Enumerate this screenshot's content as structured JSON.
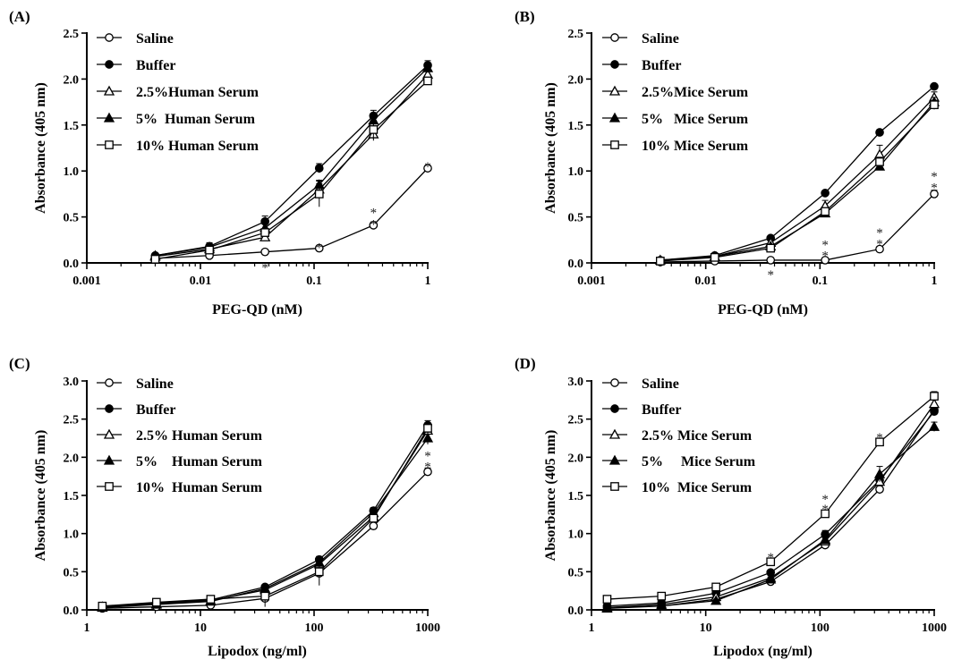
{
  "chart_data": [
    {
      "type": "line",
      "panel_label": "(A)",
      "xlabel": "PEG-QD (nM)",
      "ylabel": "Absorbance (405 nm)",
      "xscale": "log",
      "xlim": [
        0.001,
        1
      ],
      "ylim": [
        0,
        2.5
      ],
      "xticks": [
        "0.001",
        "0.01",
        "0.1",
        "1"
      ],
      "yticks": [
        "0.0",
        "0.5",
        "1.0",
        "1.5",
        "2.0",
        "2.5"
      ],
      "legend_position": "top-left",
      "x": [
        0.004,
        0.012,
        0.037,
        0.111,
        0.333,
        1
      ],
      "series": [
        {
          "name": "Saline",
          "marker": "open-circle",
          "values": [
            0.05,
            0.08,
            0.12,
            0.16,
            0.41,
            1.03
          ],
          "err": [
            0.02,
            0.02,
            0.02,
            0.02,
            0.03,
            0.02
          ]
        },
        {
          "name": "Buffer",
          "marker": "filled-circle",
          "values": [
            0.08,
            0.18,
            0.45,
            1.03,
            1.6,
            2.15
          ],
          "err": [
            0.02,
            0.04,
            0.06,
            0.05,
            0.06,
            0.05
          ]
        },
        {
          "name": "2.5%Human Serum",
          "marker": "open-triangle",
          "values": [
            0.07,
            0.15,
            0.28,
            0.8,
            1.4,
            2.05
          ],
          "err": [
            0.02,
            0.03,
            0.04,
            0.06,
            0.07,
            0.06
          ]
        },
        {
          "name": "5%  Human Serum",
          "marker": "filled-triangle",
          "values": [
            0.08,
            0.17,
            0.38,
            0.85,
            1.55,
            2.12
          ],
          "err": [
            0.02,
            0.03,
            0.05,
            0.05,
            0.05,
            0.05
          ]
        },
        {
          "name": "10% Human Serum",
          "marker": "open-square",
          "values": [
            0.04,
            0.14,
            0.33,
            0.75,
            1.45,
            1.98
          ],
          "err": [
            0.02,
            0.03,
            0.04,
            0.14,
            0.1,
            0.04
          ]
        }
      ],
      "annotations": [
        {
          "x": 0.037,
          "y": 0.0,
          "text": "*"
        },
        {
          "x": 0.111,
          "y": 0.22,
          "text": "*"
        },
        {
          "x": 0.333,
          "y": 0.47,
          "text": "*"
        },
        {
          "x": 0.333,
          "y": 0.6,
          "text": "*"
        },
        {
          "x": 1,
          "y": 1.1,
          "text": "*"
        }
      ]
    },
    {
      "type": "line",
      "panel_label": "(B)",
      "xlabel": "PEG-QD (nM)",
      "ylabel": "Absorbance (405 nm)",
      "xscale": "log",
      "xlim": [
        0.001,
        1
      ],
      "ylim": [
        0,
        2.5
      ],
      "xticks": [
        "0.001",
        "0.01",
        "0.1",
        "1"
      ],
      "yticks": [
        "0.0",
        "0.5",
        "1.0",
        "1.5",
        "2.0",
        "2.5"
      ],
      "legend_position": "top-left",
      "x": [
        0.004,
        0.012,
        0.037,
        0.111,
        0.333,
        1
      ],
      "series": [
        {
          "name": "Saline",
          "marker": "open-circle",
          "values": [
            0.01,
            0.02,
            0.03,
            0.03,
            0.15,
            0.75
          ],
          "err": [
            0.01,
            0.01,
            0.01,
            0.01,
            0.02,
            0.04
          ]
        },
        {
          "name": "Buffer",
          "marker": "filled-circle",
          "values": [
            0.03,
            0.08,
            0.27,
            0.76,
            1.42,
            1.92
          ],
          "err": [
            0.01,
            0.02,
            0.02,
            0.02,
            0.03,
            0.02
          ]
        },
        {
          "name": "2.5%Mice Serum",
          "marker": "open-triangle",
          "values": [
            0.03,
            0.07,
            0.22,
            0.62,
            1.18,
            1.8
          ],
          "err": [
            0.01,
            0.02,
            0.02,
            0.06,
            0.1,
            0.06
          ]
        },
        {
          "name": "5%   Mice Serum",
          "marker": "filled-triangle",
          "values": [
            0.03,
            0.07,
            0.18,
            0.54,
            1.05,
            1.75
          ],
          "err": [
            0.01,
            0.02,
            0.02,
            0.03,
            0.03,
            0.05
          ]
        },
        {
          "name": "10% Mice Serum",
          "marker": "open-square",
          "values": [
            0.02,
            0.06,
            0.16,
            0.56,
            1.1,
            1.72
          ],
          "err": [
            0.01,
            0.02,
            0.02,
            0.03,
            0.05,
            0.05
          ]
        }
      ],
      "annotations": [
        {
          "x": 0.037,
          "y": -0.08,
          "text": "*"
        },
        {
          "x": 0.111,
          "y": 0.13,
          "text": "*"
        },
        {
          "x": 0.111,
          "y": 0.25,
          "text": "*"
        },
        {
          "x": 0.333,
          "y": 0.26,
          "text": "*"
        },
        {
          "x": 0.333,
          "y": 0.38,
          "text": "*"
        },
        {
          "x": 1,
          "y": 0.87,
          "text": "*"
        },
        {
          "x": 1,
          "y": 0.99,
          "text": "*"
        }
      ]
    },
    {
      "type": "line",
      "panel_label": "(C)",
      "xlabel": "Lipodox (ng/ml)",
      "ylabel": "Absorbance (405 nm)",
      "xscale": "log",
      "xlim": [
        1,
        1000
      ],
      "ylim": [
        0,
        3.0
      ],
      "xticks": [
        "1",
        "10",
        "100",
        "1000"
      ],
      "yticks": [
        "0.0",
        "0.5",
        "1.0",
        "1.5",
        "2.0",
        "2.5",
        "3.0"
      ],
      "legend_position": "top-left",
      "x": [
        1.37,
        4.1,
        12.3,
        37,
        111,
        333,
        1000
      ],
      "series": [
        {
          "name": "Saline",
          "marker": "open-circle",
          "values": [
            0.02,
            0.04,
            0.06,
            0.15,
            0.48,
            1.1,
            1.81
          ],
          "err": [
            0.01,
            0.01,
            0.02,
            0.03,
            0.05,
            0.03,
            0.05
          ]
        },
        {
          "name": "Buffer",
          "marker": "filled-circle",
          "values": [
            0.04,
            0.09,
            0.13,
            0.3,
            0.66,
            1.3,
            2.42
          ],
          "err": [
            0.01,
            0.02,
            0.02,
            0.03,
            0.04,
            0.04,
            0.06
          ]
        },
        {
          "name": "2.5% Human Serum",
          "marker": "open-triangle",
          "values": [
            0.04,
            0.08,
            0.12,
            0.26,
            0.6,
            1.22,
            2.35
          ],
          "err": [
            0.01,
            0.02,
            0.02,
            0.03,
            0.04,
            0.04,
            0.06
          ]
        },
        {
          "name": "5%    Human Serum",
          "marker": "filled-triangle",
          "values": [
            0.03,
            0.07,
            0.11,
            0.28,
            0.62,
            1.27,
            2.25
          ],
          "err": [
            0.01,
            0.02,
            0.02,
            0.03,
            0.04,
            0.04,
            0.08
          ]
        },
        {
          "name": "10%  Human Serum",
          "marker": "open-square",
          "values": [
            0.05,
            0.1,
            0.14,
            0.18,
            0.5,
            1.2,
            2.38
          ],
          "err": [
            0.02,
            0.02,
            0.03,
            0.14,
            0.18,
            0.05,
            0.07
          ]
        }
      ],
      "annotations": [
        {
          "x": 1000,
          "y": 1.94,
          "text": "*"
        },
        {
          "x": 1000,
          "y": 2.08,
          "text": "*"
        }
      ]
    },
    {
      "type": "line",
      "panel_label": "(D)",
      "xlabel": "Lipodox (ng/ml)",
      "ylabel": "Absorbance (405 nm)",
      "xscale": "log",
      "xlim": [
        1,
        1000
      ],
      "ylim": [
        0,
        3.0
      ],
      "xticks": [
        "1",
        "10",
        "100",
        "1000"
      ],
      "yticks": [
        "0.0",
        "0.5",
        "1.0",
        "1.5",
        "2.0",
        "2.5",
        "3.0"
      ],
      "legend_position": "top-left",
      "x": [
        1.37,
        4.1,
        12.3,
        37,
        111,
        333,
        1000
      ],
      "series": [
        {
          "name": "Saline",
          "marker": "open-circle",
          "values": [
            0.03,
            0.05,
            0.14,
            0.37,
            0.85,
            1.58,
            2.62
          ],
          "err": [
            0.01,
            0.01,
            0.02,
            0.02,
            0.03,
            0.06,
            0.05
          ]
        },
        {
          "name": "Buffer",
          "marker": "filled-circle",
          "values": [
            0.05,
            0.09,
            0.22,
            0.49,
            0.99,
            1.7,
            2.6
          ],
          "err": [
            0.01,
            0.01,
            0.02,
            0.03,
            0.05,
            0.06,
            0.05
          ]
        },
        {
          "name": "2.5% Mice Serum",
          "marker": "open-triangle",
          "values": [
            0.03,
            0.07,
            0.17,
            0.42,
            0.9,
            1.68,
            2.7
          ],
          "err": [
            0.01,
            0.01,
            0.02,
            0.03,
            0.04,
            0.06,
            0.06
          ]
        },
        {
          "name": "5%     Mice Serum",
          "marker": "filled-triangle",
          "values": [
            0.02,
            0.05,
            0.12,
            0.4,
            0.92,
            1.78,
            2.4
          ],
          "err": [
            0.01,
            0.01,
            0.02,
            0.03,
            0.04,
            0.1,
            0.06
          ]
        },
        {
          "name": "10%  Mice Serum",
          "marker": "open-square",
          "values": [
            0.14,
            0.18,
            0.3,
            0.63,
            1.26,
            2.2,
            2.8
          ],
          "err": [
            0.02,
            0.02,
            0.02,
            0.03,
            0.04,
            0.04,
            0.06
          ]
        }
      ],
      "annotations": [
        {
          "x": 37,
          "y": 0.75,
          "text": "*"
        },
        {
          "x": 111,
          "y": 1.38,
          "text": "*"
        },
        {
          "x": 111,
          "y": 1.51,
          "text": "*"
        },
        {
          "x": 333,
          "y": 2.32,
          "text": "*"
        }
      ]
    }
  ]
}
